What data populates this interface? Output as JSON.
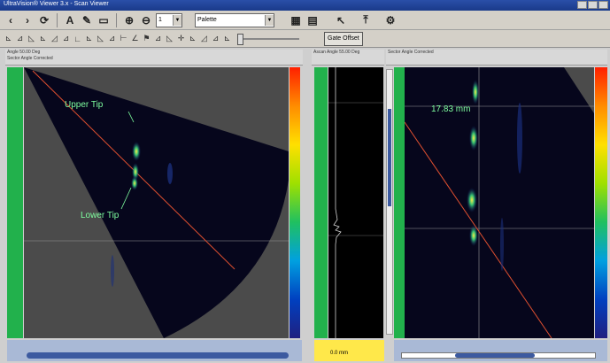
{
  "window": {
    "title": "UltraVision® Viewer 3.x - Scan Viewer"
  },
  "toolbar": {
    "zoom_value": "1",
    "palette_value": "Palette"
  },
  "toolbar2": {
    "gate_button": "Gate Offset"
  },
  "left_panel": {
    "header_line1": "Angle 50.00 Deg",
    "header_line2": "Sector Angle Corrected",
    "annotations": {
      "upper_tip": "Upper Tip",
      "lower_tip": "Lower Tip"
    }
  },
  "middle_panel": {
    "header": "Ascan Angle 55.00 Deg",
    "footer": "0.0 mm"
  },
  "right_panel": {
    "header": "Sector Angle Corrected",
    "measurement": "17.83 mm"
  },
  "colors": {
    "background": "#4b4b4b",
    "sector": "#06061c",
    "cursor_line": "#e05030",
    "annotation": "#7fff9f",
    "ruler": "#22b14c"
  }
}
